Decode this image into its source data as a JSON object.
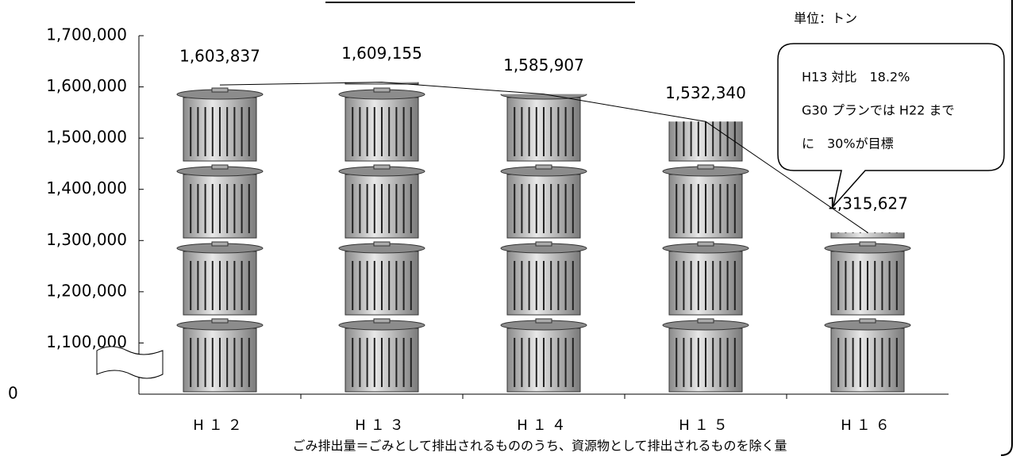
{
  "chart_data": {
    "type": "pictogram-bar",
    "unit": "単位：トン",
    "note": "ごみ排出量＝ごみとして排出されるもののうち、資源物として排出されるものを除く量",
    "callout": [
      "H13 対比　18.2%",
      "G30 プランでは H22 まで",
      "に　30%が目標"
    ],
    "categories": [
      "H１２",
      "H１３",
      "H１４",
      "H１５",
      "H１６"
    ],
    "values": [
      1603837,
      1609155,
      1585907,
      1532340,
      1315627
    ],
    "value_labels": [
      "1,603,837",
      "1,609,155",
      "1,585,907",
      "1,532,340",
      "1,315,627"
    ],
    "ylim": [
      0,
      1700000
    ],
    "yticks": [
      0,
      {
        "value": 1100000,
        "label": "1,100,000"
      },
      {
        "value": 1200000,
        "label": "1,200,000"
      },
      {
        "value": 1300000,
        "label": "1,300,000"
      },
      {
        "value": 1400000,
        "label": "1,400,000"
      },
      {
        "value": 1500000,
        "label": "1,500,000"
      },
      {
        "value": 1600000,
        "label": "1,600,000"
      },
      {
        "value": 1700000,
        "label": "1,700,000"
      }
    ],
    "axis_break": true,
    "color": "#c8c8c8"
  }
}
